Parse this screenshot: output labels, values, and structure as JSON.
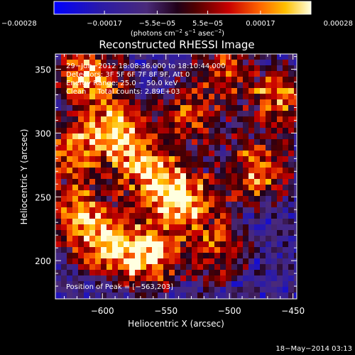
{
  "chart_data": {
    "type": "heatmap",
    "title": "Reconstructed RHESSI Image",
    "xlabel": "Heliocentric X (arcsec)",
    "ylabel": "Heliocentric Y (arcsec)",
    "xlim": [
      -637,
      -447
    ],
    "ylim": [
      170,
      362
    ],
    "xticks": [
      -600,
      -550,
      -500,
      -450
    ],
    "xtick_labels": [
      "−600",
      "−550",
      "−500",
      "−450"
    ],
    "yticks": [
      200,
      250,
      300,
      350
    ],
    "ytick_labels": [
      "200",
      "250",
      "300",
      "350"
    ],
    "colorbar": {
      "range": [
        -0.00028,
        0.00028
      ],
      "ticks": [
        -0.00028,
        -0.00017,
        -5.5e-05,
        5.5e-05,
        0.00017,
        0.00028
      ],
      "tick_labels": [
        "−0.00028",
        "−0.00017",
        "−5.5e−05",
        "5.5e−05",
        "0.00017",
        "0.00028"
      ],
      "units_parts": [
        "(photons cm",
        "−2",
        " s",
        "−1",
        " asec",
        "−2",
        ")"
      ]
    },
    "annotations": [
      "29−Jun−2012 18:08:36.000 to 18:10:44.000",
      "Detectors: 3F 5F 6F 7F 8F 9F, Att 0",
      "Energy Range: 25.0 − 50.0 keV",
      "Clean     Total counts: 2.89E+03"
    ],
    "peak_label": "Position of Peak = [−563,203]",
    "peak": [
      -563,
      203
    ],
    "bright_regions": [
      {
        "x": -565,
        "y": 205,
        "amp": 1.0
      },
      {
        "x": -610,
        "y": 345,
        "amp": 0.95
      },
      {
        "x": -590,
        "y": 305,
        "amp": 0.85
      },
      {
        "x": -552,
        "y": 258,
        "amp": 0.9
      },
      {
        "x": -530,
        "y": 243,
        "amp": 0.7
      },
      {
        "x": -478,
        "y": 270,
        "amp": 0.75
      },
      {
        "x": -618,
        "y": 235,
        "amp": 0.85
      },
      {
        "x": -595,
        "y": 212,
        "amp": 0.7
      },
      {
        "x": -510,
        "y": 208,
        "amp": 0.55
      },
      {
        "x": -462,
        "y": 327,
        "amp": 0.7
      },
      {
        "x": -530,
        "y": 315,
        "amp": 0.55
      },
      {
        "x": -505,
        "y": 350,
        "amp": 0.5
      },
      {
        "x": -625,
        "y": 285,
        "amp": 0.75
      },
      {
        "x": -575,
        "y": 280,
        "amp": 0.6
      }
    ]
  },
  "footer_timestamp": "18−May−2014 03:13"
}
